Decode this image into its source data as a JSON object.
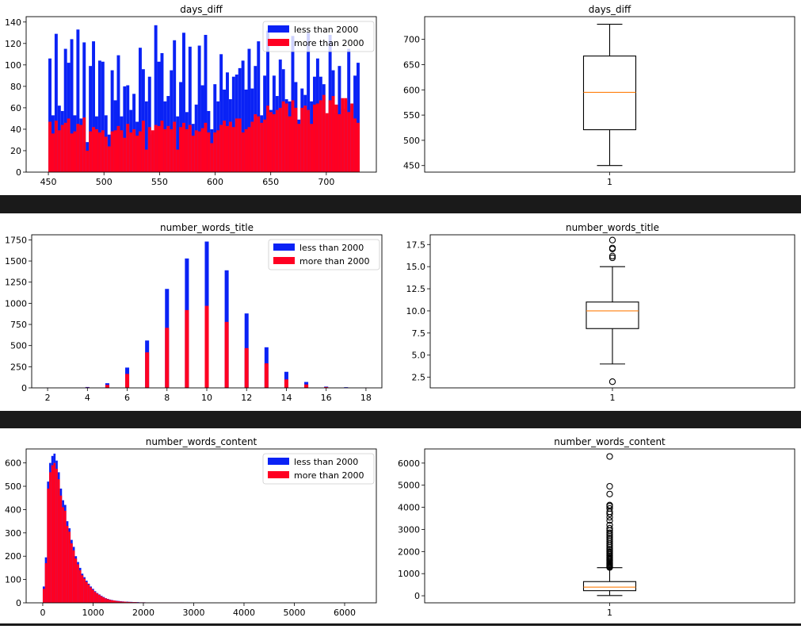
{
  "legend": {
    "less": "less than 2000",
    "more": "more than 2000"
  },
  "colors": {
    "less": "#0a22f5",
    "more": "#ff0022",
    "median": "#ff7f0e",
    "separator": "#1a1a1a"
  },
  "chart_data": [
    {
      "type": "bar",
      "title": "days_diff",
      "legend_position": "top-right",
      "xlim": [
        430,
        745
      ],
      "ylim": [
        0,
        145
      ],
      "xticks": [
        450,
        500,
        550,
        600,
        650,
        700
      ],
      "yticks": [
        0,
        20,
        40,
        60,
        80,
        100,
        120,
        140
      ],
      "bin_start": 450,
      "bin_width": 2.8,
      "series": [
        {
          "name": "less than 2000",
          "values": [
            106,
            53,
            129,
            62,
            57,
            115,
            102,
            124,
            53,
            133,
            50,
            121,
            28,
            99,
            122,
            52,
            104,
            103,
            53,
            35,
            95,
            67,
            109,
            52,
            80,
            81,
            58,
            73,
            47,
            116,
            96,
            66,
            89,
            35,
            137,
            103,
            111,
            66,
            71,
            95,
            123,
            52,
            84,
            130,
            56,
            117,
            45,
            63,
            118,
            81,
            128,
            57,
            40,
            82,
            66,
            110,
            77,
            93,
            68,
            89,
            91,
            97,
            104,
            77,
            115,
            78,
            99,
            122,
            53,
            90,
            132,
            58,
            90,
            71,
            105,
            96,
            68,
            66,
            127,
            84,
            49,
            78,
            72,
            130,
            66,
            89,
            106,
            89,
            82,
            53,
            128,
            95,
            55,
            99,
            59,
            67,
            115,
            62,
            90,
            102
          ]
        },
        {
          "name": "more than 2000",
          "values": [
            47,
            36,
            48,
            39,
            44,
            46,
            50,
            36,
            38,
            45,
            44,
            51,
            20,
            38,
            42,
            40,
            37,
            39,
            33,
            24,
            38,
            39,
            43,
            39,
            32,
            45,
            37,
            40,
            34,
            38,
            48,
            21,
            42,
            39,
            44,
            43,
            48,
            40,
            43,
            40,
            47,
            21,
            42,
            46,
            40,
            44,
            34,
            39,
            38,
            41,
            46,
            37,
            27,
            37,
            39,
            44,
            48,
            43,
            47,
            42,
            50,
            50,
            37,
            40,
            42,
            47,
            54,
            52,
            46,
            49,
            62,
            56,
            54,
            58,
            60,
            66,
            64,
            52,
            67,
            60,
            45,
            60,
            62,
            58,
            45,
            63,
            64,
            67,
            72,
            55,
            67,
            71,
            63,
            54,
            69,
            69,
            56,
            64,
            50,
            46
          ]
        }
      ]
    },
    {
      "type": "box",
      "title": "days_diff",
      "ylim": [
        437,
        745
      ],
      "yticks": [
        450,
        500,
        550,
        600,
        650,
        700
      ],
      "xtick": "1",
      "whisker_low": 450,
      "q1": 521,
      "median": 595,
      "q3": 667,
      "whisker_high": 730,
      "outliers": []
    },
    {
      "type": "bar",
      "title": "number_words_title",
      "legend_position": "top-right",
      "xlim": [
        1.2,
        18.8
      ],
      "ylim": [
        0,
        1810
      ],
      "xticks": [
        2,
        4,
        6,
        8,
        10,
        12,
        14,
        16,
        18
      ],
      "yticks": [
        0,
        250,
        500,
        750,
        1000,
        1250,
        1500,
        1750
      ],
      "bar_width": 0.2,
      "x": [
        2,
        4,
        5,
        6,
        7,
        8,
        9,
        10,
        11,
        12,
        13,
        14,
        15,
        16,
        17,
        18
      ],
      "series": [
        {
          "name": "less than 2000",
          "values": [
            2,
            10,
            55,
            240,
            560,
            1170,
            1530,
            1730,
            1390,
            880,
            480,
            190,
            70,
            15,
            8,
            3
          ]
        },
        {
          "name": "more than 2000",
          "values": [
            1,
            6,
            35,
            165,
            420,
            710,
            920,
            970,
            780,
            470,
            290,
            100,
            40,
            10,
            4,
            2
          ]
        }
      ]
    },
    {
      "type": "box",
      "title": "number_words_title",
      "ylim": [
        1.3,
        18.6
      ],
      "yticks": [
        2.5,
        5.0,
        7.5,
        10.0,
        12.5,
        15.0,
        17.5
      ],
      "xtick": "1",
      "whisker_low": 4,
      "q1": 8,
      "median": 10,
      "q3": 11,
      "whisker_high": 15,
      "outliers": [
        16,
        16.2,
        17,
        17.1,
        18,
        2
      ]
    },
    {
      "type": "bar",
      "title": "number_words_content",
      "legend_position": "top-right",
      "xlim": [
        -330,
        6630
      ],
      "ylim": [
        0,
        660
      ],
      "xticks": [
        0,
        1000,
        2000,
        3000,
        4000,
        5000,
        6000
      ],
      "yticks": [
        0,
        100,
        200,
        300,
        400,
        500,
        600
      ],
      "bin_start": 0,
      "bin_width": 42.5,
      "series": [
        {
          "name": "less than 2000",
          "values": [
            70,
            195,
            520,
            600,
            630,
            640,
            610,
            560,
            490,
            440,
            420,
            350,
            320,
            270,
            240,
            200,
            175,
            150,
            125,
            110,
            95,
            82,
            70,
            60,
            50,
            42,
            36,
            30,
            25,
            20,
            17,
            14,
            12,
            10,
            9,
            8,
            7,
            6,
            5,
            5,
            4,
            4,
            3,
            3,
            3,
            2,
            2,
            2,
            1,
            1,
            1,
            1,
            1,
            1,
            1,
            1,
            1,
            1,
            1,
            1,
            1,
            1,
            1,
            1,
            1,
            1
          ]
        },
        {
          "name": "more than 2000",
          "values": [
            60,
            170,
            490,
            560,
            590,
            600,
            575,
            530,
            460,
            410,
            395,
            330,
            305,
            255,
            225,
            190,
            165,
            140,
            118,
            104,
            90,
            78,
            66,
            56,
            47,
            40,
            34,
            28,
            23,
            19,
            16,
            13,
            11,
            10,
            8,
            7,
            6,
            5,
            5,
            4,
            4,
            3,
            3,
            3,
            2,
            2,
            2,
            2,
            1,
            1,
            1,
            1,
            1,
            1,
            1,
            1,
            1,
            1,
            1,
            1,
            1,
            1,
            1,
            1,
            1,
            1
          ]
        }
      ]
    },
    {
      "type": "box",
      "title": "number_words_content",
      "ylim": [
        -320,
        6640
      ],
      "yticks": [
        0,
        1000,
        2000,
        3000,
        4000,
        5000,
        6000
      ],
      "xtick": "1",
      "whisker_low": 10,
      "q1": 230,
      "median": 390,
      "q3": 640,
      "whisker_high": 1270,
      "outliers": [
        1280,
        1310,
        1340,
        1380,
        1420,
        1460,
        1500,
        1550,
        1600,
        1650,
        1700,
        1750,
        1800,
        1860,
        1920,
        1980,
        2050,
        2120,
        2200,
        2280,
        2360,
        2450,
        2540,
        2620,
        2700,
        2780,
        2850,
        2950,
        3050,
        3200,
        3400,
        3550,
        3700,
        3800,
        3950,
        4050,
        4100,
        4600,
        4950,
        6300
      ]
    }
  ]
}
